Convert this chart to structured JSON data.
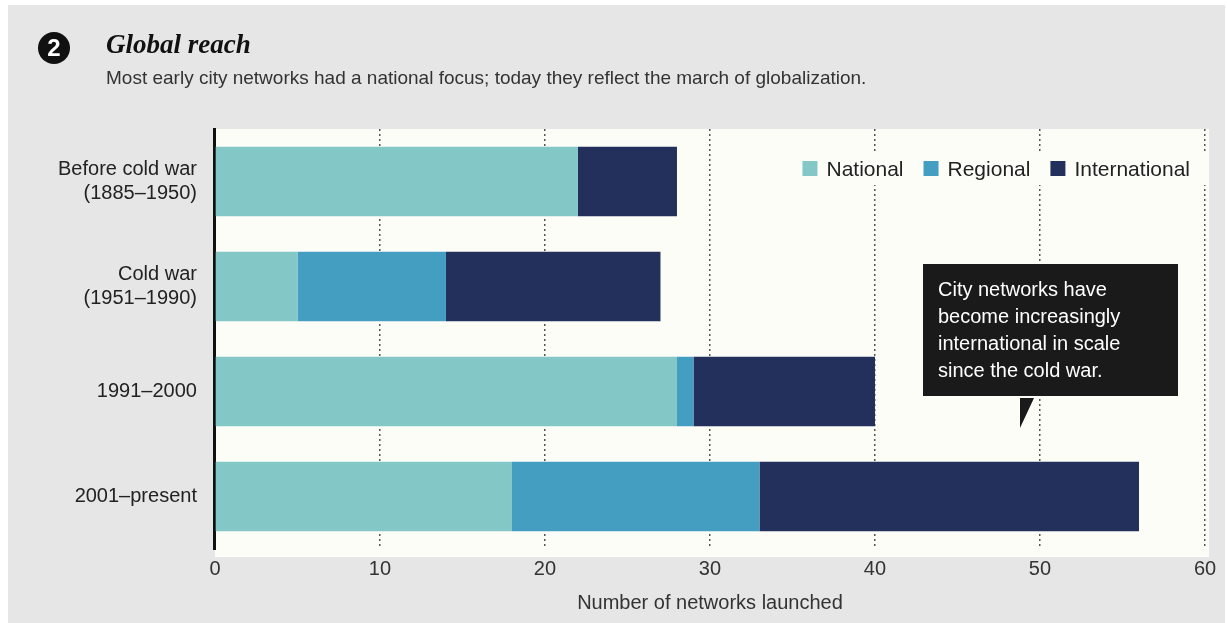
{
  "chart_data": {
    "type": "bar",
    "orientation": "horizontal",
    "stacked": true,
    "title": "Global reach",
    "subtitle": "Most early city networks had a national focus; today they reflect the march of globalization.",
    "xlabel": "Number of networks launched",
    "categories": [
      "Before cold war\n(1885–1950)",
      "Cold war\n(1951–1990)",
      "1991–2000",
      "2001–present"
    ],
    "series": [
      {
        "name": "National",
        "color": "#83c7c7",
        "values": [
          22,
          5,
          28,
          18
        ]
      },
      {
        "name": "Regional",
        "color": "#449ec1",
        "values": [
          0,
          9,
          1,
          15
        ]
      },
      {
        "name": "International",
        "color": "#23305b",
        "values": [
          6,
          13,
          11,
          23
        ]
      }
    ],
    "xlim": [
      0,
      60
    ],
    "xticks": [
      0,
      10,
      20,
      30,
      40,
      50,
      60
    ],
    "grid": "x",
    "legend": "top right",
    "annotations": [
      "2",
      "City networks have become increasingly international in scale since the cold war."
    ]
  }
}
